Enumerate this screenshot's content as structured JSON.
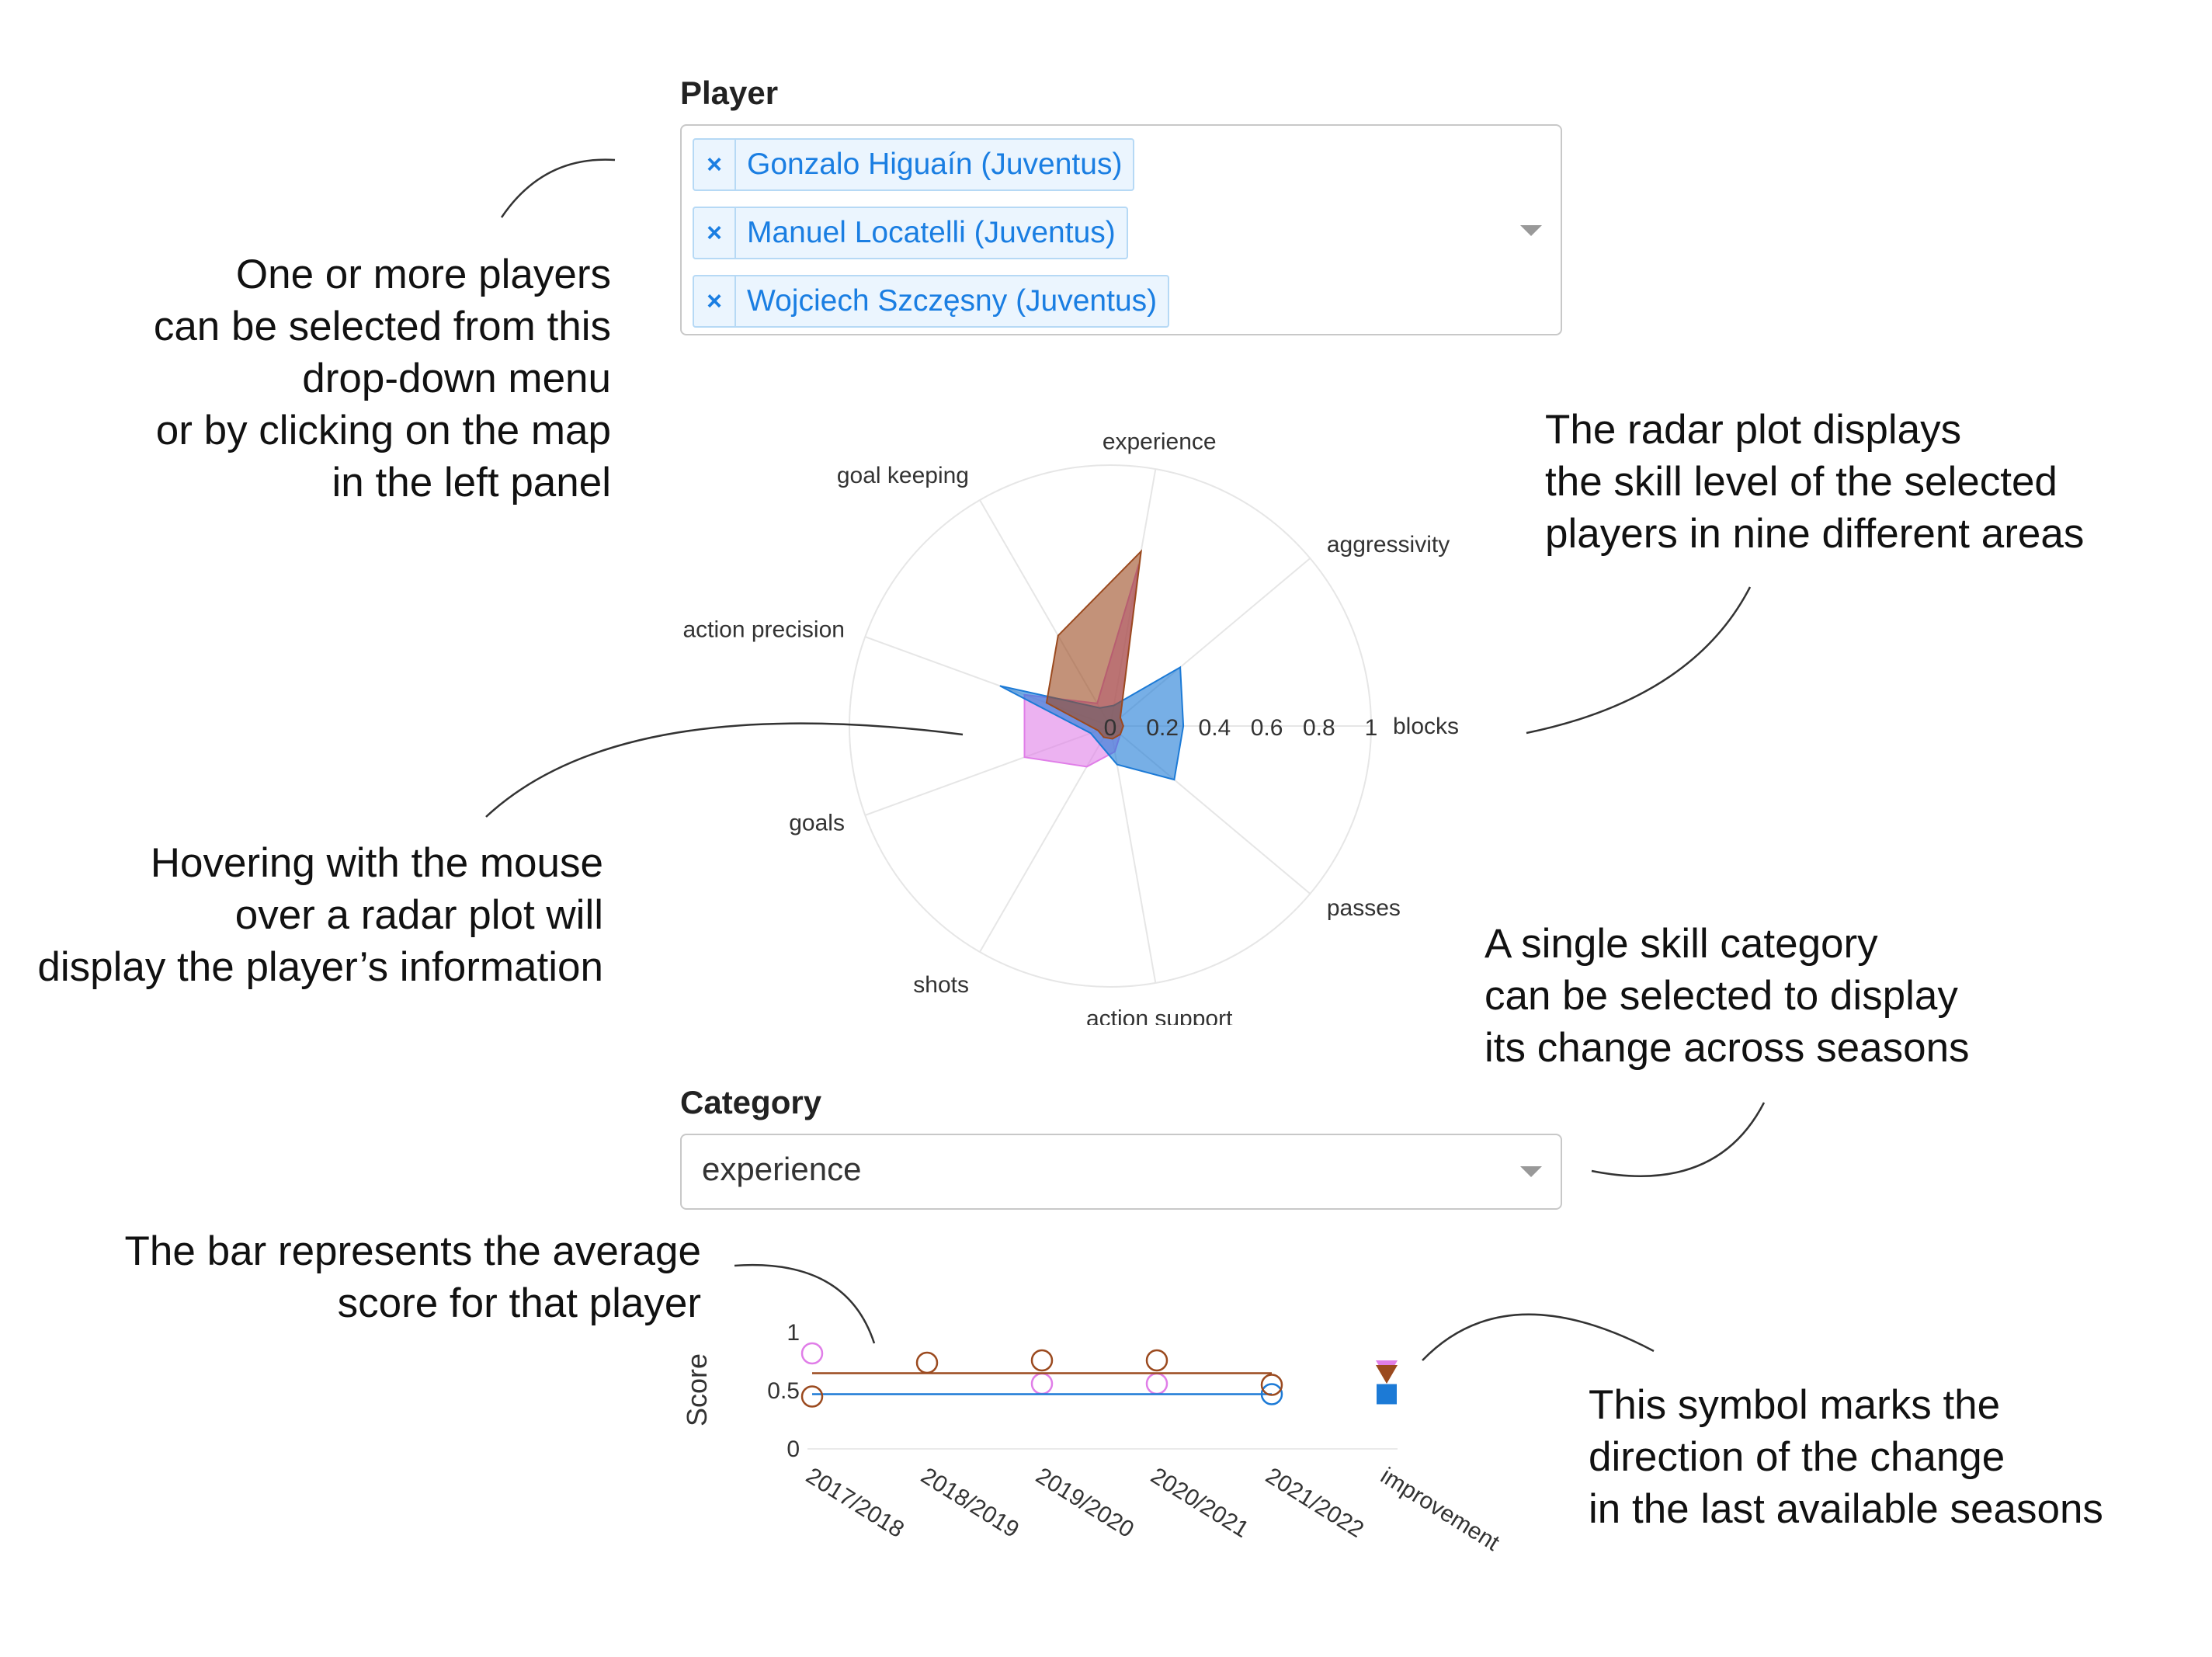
{
  "player_section": {
    "label": "Player",
    "selected": [
      {
        "label": "Gonzalo Higuaín (Juventus)",
        "remove": "×"
      },
      {
        "label": "Manuel Locatelli (Juventus)",
        "remove": "×"
      },
      {
        "label": "Wojciech Szczęsny (Juventus)",
        "remove": "×"
      }
    ]
  },
  "category_section": {
    "label": "Category",
    "value": "experience"
  },
  "annotations": {
    "players": [
      "One or more players",
      "can be selected from this",
      "drop-down menu",
      "or by clicking on the map",
      "in the left panel"
    ],
    "radar": [
      "The radar plot displays",
      "the skill level of the selected",
      "players in nine different areas"
    ],
    "hover": [
      "Hovering with the mouse",
      "over a radar plot will",
      "display the player’s information"
    ],
    "category": [
      "A single skill category",
      "can be selected to display",
      "its change across seasons"
    ],
    "bar": [
      "The bar represents the average",
      "score for that player"
    ],
    "symbol": [
      "This symbol marks the",
      "direction of the change",
      "in the last available seasons"
    ]
  },
  "colors": {
    "pink": "#e07ee8",
    "blue": "#1c7ad6",
    "brown": "#9b4a1f"
  },
  "chart_data": [
    {
      "type": "radar",
      "axes": [
        "experience",
        "aggressivity",
        "blocks",
        "passes",
        "action support",
        "shots",
        "goals",
        "action precision",
        "goal keeping"
      ],
      "radial_ticks": [
        "0",
        "0.2",
        "0.4",
        "0.6",
        "0.8",
        "1"
      ],
      "range": [
        0,
        1
      ],
      "series": [
        {
          "color": "pink",
          "values": [
            0.63,
            0.05,
            0.05,
            0.05,
            0.1,
            0.18,
            0.35,
            0.35,
            0.1
          ]
        },
        {
          "color": "blue",
          "values": [
            0.08,
            0.35,
            0.28,
            0.32,
            0.15,
            0.08,
            0.08,
            0.45,
            0.08
          ]
        },
        {
          "color": "brown",
          "values": [
            0.68,
            0.05,
            0.05,
            0.05,
            0.05,
            0.05,
            0.05,
            0.26,
            0.4
          ]
        }
      ]
    },
    {
      "type": "scatter",
      "ylabel": "Score",
      "categories": [
        "2017/2018",
        "2018/2019",
        "2019/2020",
        "2020/2021",
        "2021/2022",
        "improvement"
      ],
      "yticks": [
        "0",
        "0.5",
        "1"
      ],
      "ylim": [
        0,
        1
      ],
      "series": [
        {
          "color": "pink",
          "values": [
            0.82,
            null,
            0.56,
            0.56,
            null
          ],
          "improvement": "down"
        },
        {
          "color": "blue",
          "values": [
            null,
            null,
            null,
            null,
            0.47
          ],
          "average": 0.47,
          "improvement": "same"
        },
        {
          "color": "brown",
          "values": [
            0.45,
            0.74,
            0.76,
            0.76,
            0.55
          ],
          "average": 0.65,
          "improvement": "down"
        }
      ]
    }
  ]
}
